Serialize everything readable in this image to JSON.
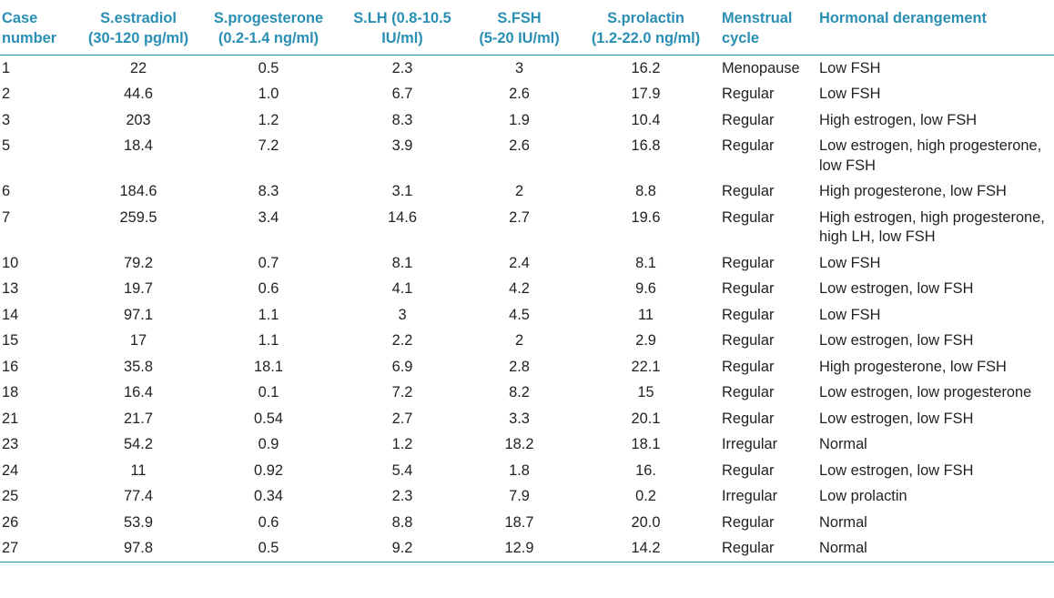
{
  "headers": [
    [
      "Case",
      "number"
    ],
    [
      "S.estradiol",
      "(30-120 pg/ml)"
    ],
    [
      "S.progesterone",
      "(0.2-1.4 ng/ml)"
    ],
    [
      "S.LH (0.8-10.5",
      "IU/ml)"
    ],
    [
      "S.FSH",
      "(5-20 IU/ml)"
    ],
    [
      "S.prolactin",
      "(1.2-22.0 ng/ml)"
    ],
    [
      "Menstrual",
      "cycle"
    ],
    [
      "Hormonal derangement",
      ""
    ]
  ],
  "rows": [
    [
      "1",
      "22",
      "0.5",
      "2.3",
      "3",
      "16.2",
      "Menopause",
      "Low FSH"
    ],
    [
      "2",
      "44.6",
      "1.0",
      "6.7",
      "2.6",
      "17.9",
      "Regular",
      "Low FSH"
    ],
    [
      "3",
      "203",
      "1.2",
      "8.3",
      "1.9",
      "10.4",
      "Regular",
      "High estrogen, low FSH"
    ],
    [
      "5",
      "18.4",
      "7.2",
      "3.9",
      "2.6",
      "16.8",
      "Regular",
      "Low estrogen, high progesterone, low FSH"
    ],
    [
      "6",
      "184.6",
      "8.3",
      "3.1",
      "2",
      "8.8",
      "Regular",
      "High progesterone, low FSH"
    ],
    [
      "7",
      "259.5",
      "3.4",
      "14.6",
      "2.7",
      "19.6",
      "Regular",
      "High estrogen, high progesterone, high LH, low FSH"
    ],
    [
      "10",
      "79.2",
      "0.7",
      "8.1",
      "2.4",
      "8.1",
      "Regular",
      "Low FSH"
    ],
    [
      "13",
      "19.7",
      "0.6",
      "4.1",
      "4.2",
      "9.6",
      "Regular",
      "Low estrogen, low FSH"
    ],
    [
      "14",
      "97.1",
      "1.1",
      "3",
      "4.5",
      "11",
      "Regular",
      "Low FSH"
    ],
    [
      "15",
      "17",
      "1.1",
      "2.2",
      "2",
      "2.9",
      "Regular",
      "Low estrogen, low FSH"
    ],
    [
      "16",
      "35.8",
      "18.1",
      "6.9",
      "2.8",
      "22.1",
      "Regular",
      "High progesterone, low FSH"
    ],
    [
      "18",
      "16.4",
      "0.1",
      "7.2",
      "8.2",
      "15",
      "Regular",
      "Low estrogen, low progesterone"
    ],
    [
      "21",
      "21.7",
      "0.54",
      "2.7",
      "3.3",
      "20.1",
      "Regular",
      "Low estrogen, low FSH"
    ],
    [
      "23",
      "54.2",
      "0.9",
      "1.2",
      "18.2",
      "18.1",
      "Irregular",
      "Normal"
    ],
    [
      "24",
      "11",
      "0.92",
      "5.4",
      "1.8",
      "16.",
      "Regular",
      "Low estrogen, low FSH"
    ],
    [
      "25",
      "77.4",
      "0.34",
      "2.3",
      "7.9",
      "0.2",
      "Irregular",
      "Low prolactin"
    ],
    [
      "26",
      "53.9",
      "0.6",
      "8.8",
      "18.7",
      "20.0",
      "Regular",
      "Normal"
    ],
    [
      "27",
      "97.8",
      "0.5",
      "9.2",
      "12.9",
      "14.2",
      "Regular",
      "Normal"
    ]
  ],
  "colors": {
    "header_text": "#2a8fb4",
    "rule": "#2a8fb4",
    "body_text": "#231f20"
  }
}
